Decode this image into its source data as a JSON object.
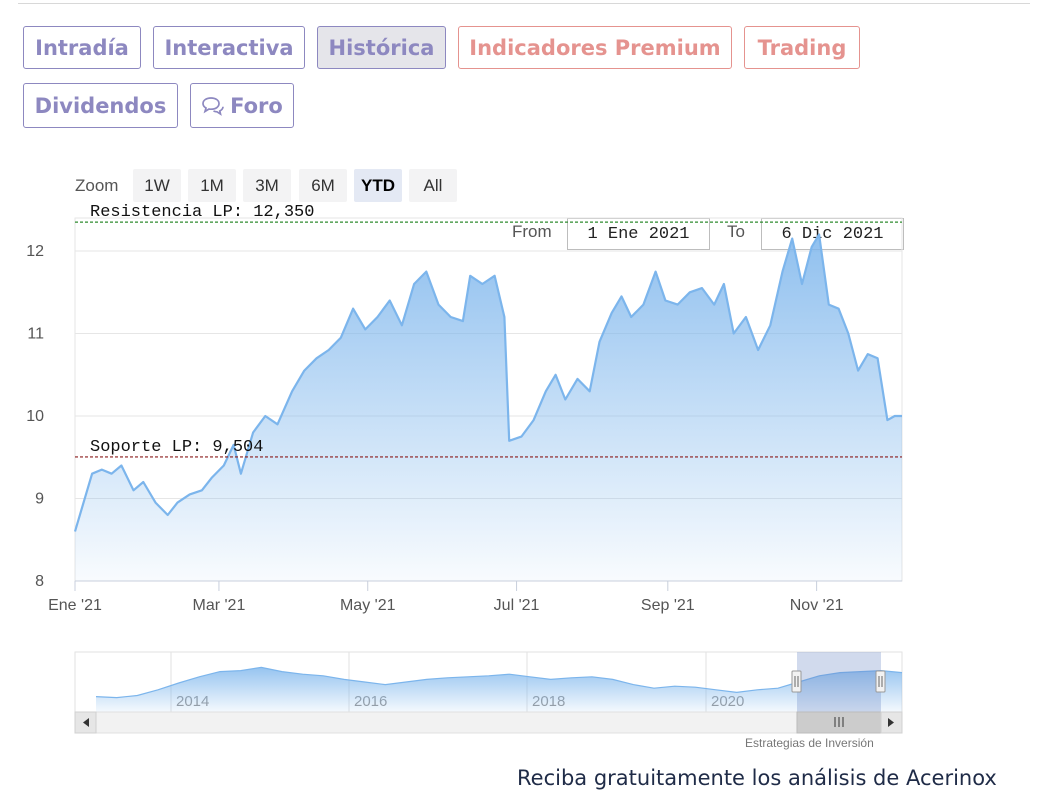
{
  "tabs": [
    {
      "label": "Intradía",
      "style": "normal"
    },
    {
      "label": "Interactiva",
      "style": "normal"
    },
    {
      "label": "Histórica",
      "style": "active"
    },
    {
      "label": "Indicadores Premium",
      "style": "premium"
    },
    {
      "label": "Trading",
      "style": "premium"
    },
    {
      "label": "Dividendos",
      "style": "normal"
    },
    {
      "label": "Foro",
      "style": "normal",
      "icon": "chat-bubbles-icon"
    }
  ],
  "zoom": {
    "label": "Zoom",
    "buttons": [
      "1W",
      "1M",
      "3M",
      "6M",
      "YTD",
      "All"
    ],
    "selected": "YTD"
  },
  "range": {
    "from_label": "From",
    "from_value": "1 Ene 2021",
    "to_label": "To",
    "to_value": "6 Dic 2021"
  },
  "credit": "Estrategias de Inversión",
  "cta": "Reciba gratuitamente los análisis de Acerinox",
  "colors": {
    "tab_purple": "#8d88c0",
    "tab_premium": "#e5938f",
    "line": "#7cb5ec",
    "resistance": "#2e8b2e",
    "support": "#8b1a1a"
  },
  "chart_data": {
    "type": "area",
    "ylim": [
      8,
      12.4
    ],
    "y_ticks": [
      "8",
      "9",
      "10",
      "11",
      "12"
    ],
    "x_tick_labels": [
      "Ene '21",
      "Mar '21",
      "May '21",
      "Jul '21",
      "Sep '21",
      "Nov '21"
    ],
    "x_tick_dates": [
      "2021-01-01",
      "2021-03-01",
      "2021-05-01",
      "2021-07-01",
      "2021-09-01",
      "2021-11-01"
    ],
    "x_range": [
      "2021-01-01",
      "2021-12-06"
    ],
    "grid": true,
    "series": [
      {
        "points": [
          [
            "2021-01-01",
            8.6
          ],
          [
            "2021-01-04",
            8.9
          ],
          [
            "2021-01-08",
            9.3
          ],
          [
            "2021-01-12",
            9.35
          ],
          [
            "2021-01-16",
            9.3
          ],
          [
            "2021-01-20",
            9.4
          ],
          [
            "2021-01-25",
            9.1
          ],
          [
            "2021-01-29",
            9.2
          ],
          [
            "2021-02-03",
            8.95
          ],
          [
            "2021-02-08",
            8.8
          ],
          [
            "2021-02-12",
            8.95
          ],
          [
            "2021-02-17",
            9.05
          ],
          [
            "2021-02-22",
            9.1
          ],
          [
            "2021-02-26",
            9.25
          ],
          [
            "2021-03-03",
            9.4
          ],
          [
            "2021-03-07",
            9.65
          ],
          [
            "2021-03-10",
            9.3
          ],
          [
            "2021-03-15",
            9.8
          ],
          [
            "2021-03-20",
            10.0
          ],
          [
            "2021-03-25",
            9.9
          ],
          [
            "2021-03-31",
            10.3
          ],
          [
            "2021-04-05",
            10.55
          ],
          [
            "2021-04-10",
            10.7
          ],
          [
            "2021-04-15",
            10.8
          ],
          [
            "2021-04-20",
            10.95
          ],
          [
            "2021-04-25",
            11.3
          ],
          [
            "2021-04-30",
            11.05
          ],
          [
            "2021-05-05",
            11.2
          ],
          [
            "2021-05-10",
            11.4
          ],
          [
            "2021-05-15",
            11.1
          ],
          [
            "2021-05-20",
            11.6
          ],
          [
            "2021-05-25",
            11.75
          ],
          [
            "2021-05-30",
            11.35
          ],
          [
            "2021-06-04",
            11.2
          ],
          [
            "2021-06-09",
            11.15
          ],
          [
            "2021-06-12",
            11.7
          ],
          [
            "2021-06-17",
            11.6
          ],
          [
            "2021-06-22",
            11.7
          ],
          [
            "2021-06-26",
            11.2
          ],
          [
            "2021-06-28",
            9.7
          ],
          [
            "2021-07-03",
            9.75
          ],
          [
            "2021-07-08",
            9.95
          ],
          [
            "2021-07-13",
            10.3
          ],
          [
            "2021-07-17",
            10.5
          ],
          [
            "2021-07-21",
            10.2
          ],
          [
            "2021-07-26",
            10.45
          ],
          [
            "2021-07-31",
            10.3
          ],
          [
            "2021-08-04",
            10.9
          ],
          [
            "2021-08-09",
            11.25
          ],
          [
            "2021-08-13",
            11.45
          ],
          [
            "2021-08-17",
            11.2
          ],
          [
            "2021-08-22",
            11.35
          ],
          [
            "2021-08-27",
            11.75
          ],
          [
            "2021-08-31",
            11.4
          ],
          [
            "2021-09-05",
            11.35
          ],
          [
            "2021-09-10",
            11.5
          ],
          [
            "2021-09-15",
            11.55
          ],
          [
            "2021-09-20",
            11.35
          ],
          [
            "2021-09-24",
            11.6
          ],
          [
            "2021-09-28",
            11.0
          ],
          [
            "2021-10-03",
            11.2
          ],
          [
            "2021-10-08",
            10.8
          ],
          [
            "2021-10-13",
            11.1
          ],
          [
            "2021-10-18",
            11.75
          ],
          [
            "2021-10-22",
            12.15
          ],
          [
            "2021-10-26",
            11.6
          ],
          [
            "2021-10-30",
            12.05
          ],
          [
            "2021-11-02",
            12.2
          ],
          [
            "2021-11-06",
            11.35
          ],
          [
            "2021-11-10",
            11.3
          ],
          [
            "2021-11-14",
            11.0
          ],
          [
            "2021-11-18",
            10.55
          ],
          [
            "2021-11-22",
            10.75
          ],
          [
            "2021-11-26",
            10.7
          ],
          [
            "2021-11-30",
            9.95
          ],
          [
            "2021-12-03",
            10.0
          ],
          [
            "2021-12-06",
            10.0
          ]
        ]
      }
    ],
    "annotations": [
      {
        "label": "Resistencia LP: 12,350",
        "value": 12.35,
        "style": "dashed",
        "color": "#2e8b2e"
      },
      {
        "label": "Soporte LP: 9,504",
        "value": 9.504,
        "style": "dashed",
        "color": "#8b1a1a"
      }
    ],
    "navigator": {
      "year_labels": [
        "2014",
        "2016",
        "2018",
        "2020"
      ],
      "values": [
        0.22,
        0.2,
        0.24,
        0.35,
        0.48,
        0.6,
        0.7,
        0.72,
        0.78,
        0.7,
        0.65,
        0.62,
        0.55,
        0.5,
        0.45,
        0.5,
        0.55,
        0.58,
        0.6,
        0.62,
        0.65,
        0.6,
        0.55,
        0.58,
        0.6,
        0.55,
        0.45,
        0.38,
        0.42,
        0.4,
        0.35,
        0.3,
        0.35,
        0.38,
        0.5,
        0.62,
        0.68,
        0.7,
        0.72,
        0.68
      ]
    }
  }
}
